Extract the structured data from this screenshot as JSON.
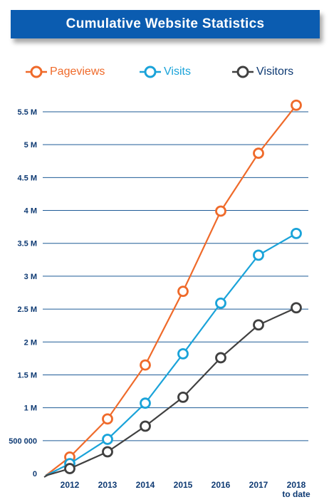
{
  "header": {
    "title": "Cumulative Website Statistics"
  },
  "legend": {
    "items": [
      {
        "label": "Pageviews",
        "color": "#ef6a2a"
      },
      {
        "label": "Visits",
        "color": "#1aa3d9"
      },
      {
        "label": "Visitors",
        "color": "#404040"
      }
    ]
  },
  "chart_data": {
    "type": "line",
    "title": "Cumulative Website Statistics",
    "xlabel": "",
    "ylabel": "",
    "categories": [
      "2012",
      "2013",
      "2014",
      "2015",
      "2016",
      "2017",
      "2018"
    ],
    "category_labels": [
      [
        "2012"
      ],
      [
        "2013"
      ],
      [
        "2014"
      ],
      [
        "2015"
      ],
      [
        "2016"
      ],
      [
        "2017"
      ],
      [
        "2018",
        "to date"
      ]
    ],
    "ylim": [
      0,
      5500000
    ],
    "yticks": [
      0,
      500000,
      1000000,
      1500000,
      2000000,
      2500000,
      3000000,
      3500000,
      4000000,
      4500000,
      5000000,
      5500000
    ],
    "ytick_labels": [
      "0",
      "500 000",
      "1 M",
      "1.5 M",
      "2 M",
      "2.5 M",
      "3 M",
      "3.5 M",
      "4 M",
      "4.5 M",
      "5 M",
      "5.5 M"
    ],
    "grid": true,
    "legend_position": "top",
    "series": [
      {
        "name": "Pageviews",
        "color": "#ef6a2a",
        "values": [
          250000,
          830000,
          1650000,
          2770000,
          3990000,
          4870000,
          5600000
        ]
      },
      {
        "name": "Visits",
        "color": "#1aa3d9",
        "values": [
          150000,
          520000,
          1070000,
          1820000,
          2590000,
          3320000,
          3650000
        ]
      },
      {
        "name": "Visitors",
        "color": "#404040",
        "values": [
          75000,
          330000,
          720000,
          1160000,
          1760000,
          2260000,
          2520000
        ]
      }
    ]
  }
}
